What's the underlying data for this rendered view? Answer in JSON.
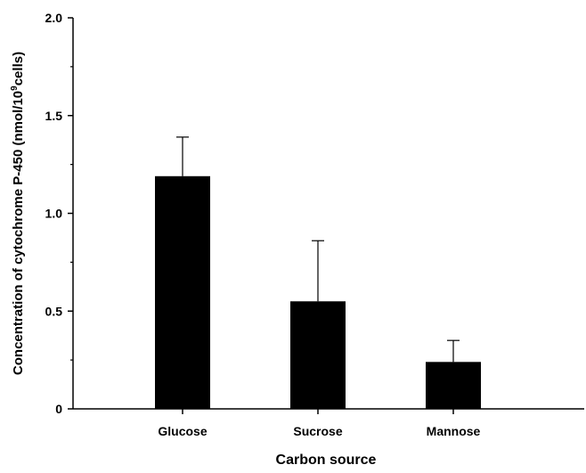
{
  "chart_data": {
    "type": "bar",
    "title": "",
    "xlabel": "Carbon source",
    "ylabel": {
      "prefix": "Concentration of cytochrome P-450 (nmol/10",
      "superscript": "9",
      "suffix": "cells)"
    },
    "categories": [
      "Glucose",
      "Sucrose",
      "Mannose"
    ],
    "series": [
      {
        "values": [
          1.19,
          0.55,
          0.24
        ],
        "error": [
          0.2,
          0.31,
          0.11
        ]
      }
    ],
    "ylim": [
      0,
      2.0
    ],
    "yticks": [
      "0",
      "0.5",
      "1.0",
      "1.5",
      "2.0"
    ],
    "grid": false,
    "bar_color": "#000000"
  }
}
